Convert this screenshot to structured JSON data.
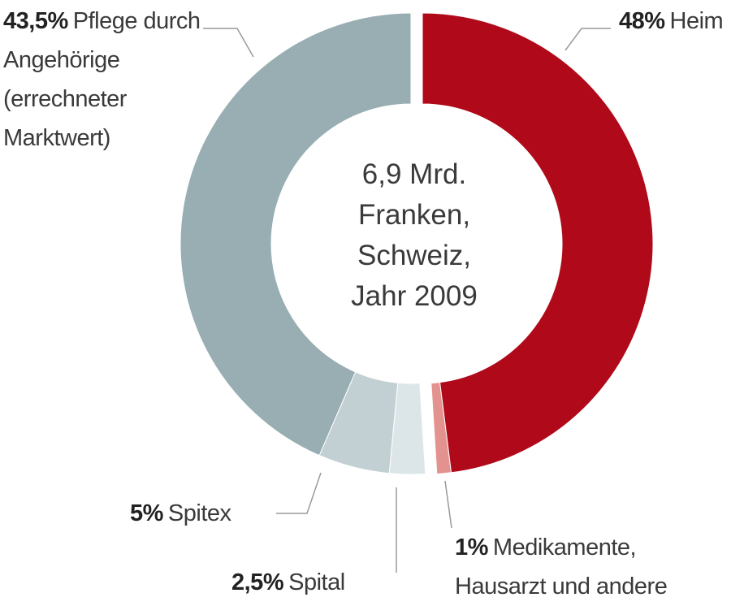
{
  "chart_data": {
    "type": "donut",
    "center_text": [
      "6,9 Mrd.",
      "Franken,",
      "Schweiz,",
      "Jahr 2009"
    ],
    "categories": [
      "Heim",
      "Medikamente, Hausarzt und andere",
      "Spital",
      "Spitex",
      "Pflege durch Angehörige (errechneter Marktwert)"
    ],
    "values": [
      48,
      1,
      2.5,
      5,
      43.5
    ],
    "value_labels": [
      "48%",
      "1%",
      "2,5%",
      "5%",
      "43,5%"
    ],
    "colors": [
      "#b00a1a",
      "#e3928f",
      "#dce6e8",
      "#c2d0d3",
      "#98aeb2"
    ]
  }
}
